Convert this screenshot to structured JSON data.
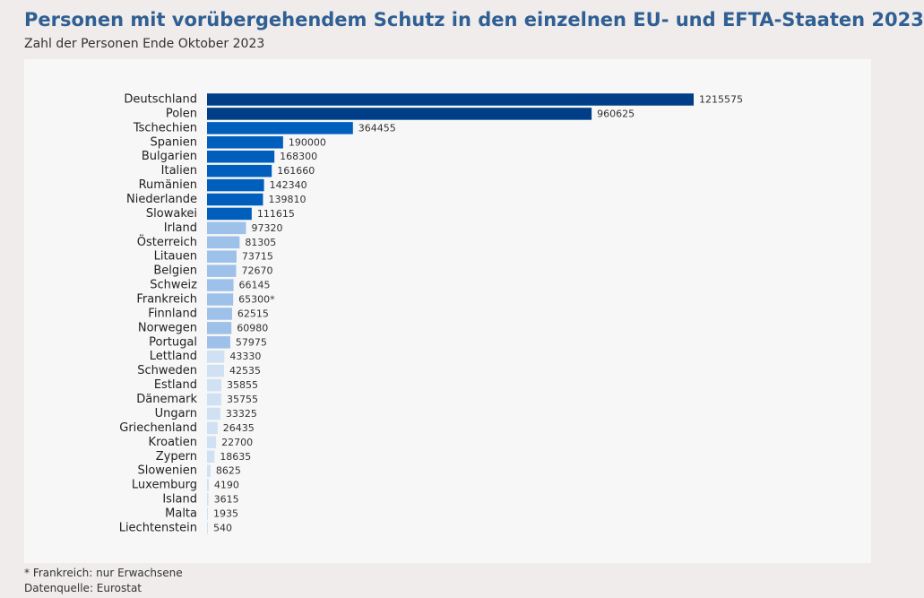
{
  "title": "Personen mit vorübergehendem Schutz in den einzelnen EU- und EFTA-Staaten 2023",
  "subtitle": "Zahl der Personen Ende Oktober 2023",
  "footnote": "* Frankreich: nur Erwachsene",
  "source": "Datenquelle: Eurostat",
  "colors": {
    "tier1": "#003f87",
    "tier2": "#005fbd",
    "tier3": "#9dc1e8",
    "tier4": "#cfe1f3"
  },
  "chart_data": {
    "type": "bar",
    "orientation": "horizontal",
    "title": "Personen mit vorübergehendem Schutz in den einzelnen EU- und EFTA-Staaten 2023",
    "subtitle": "Zahl der Personen Ende Oktober 2023",
    "xlim": [
      0,
      1215575
    ],
    "grid": false,
    "categories": [
      "Deutschland",
      "Polen",
      "Tschechien",
      "Spanien",
      "Bulgarien",
      "Italien",
      "Rumänien",
      "Niederlande",
      "Slowakei",
      "Irland",
      "Österreich",
      "Litauen",
      "Belgien",
      "Schweiz",
      "Frankreich",
      "Finnland",
      "Norwegen",
      "Portugal",
      "Lettland",
      "Schweden",
      "Estland",
      "Dänemark",
      "Ungarn",
      "Griechenland",
      "Kroatien",
      "Zypern",
      "Slowenien",
      "Luxemburg",
      "Island",
      "Malta",
      "Liechtenstein"
    ],
    "values": [
      1215575,
      960625,
      364455,
      190000,
      168300,
      161660,
      142340,
      139810,
      111615,
      97320,
      81305,
      73715,
      72670,
      66145,
      65300,
      62515,
      60980,
      57975,
      43330,
      42535,
      35855,
      35755,
      33325,
      26435,
      22700,
      18635,
      8625,
      4190,
      3615,
      1935,
      540
    ],
    "labels": [
      "1215575",
      "960625",
      "364455",
      "190000",
      "168300",
      "161660",
      "142340",
      "139810",
      "111615",
      "97320",
      "81305",
      "73715",
      "72670",
      "66145",
      "65300*",
      "62515",
      "60980",
      "57975",
      "43330",
      "42535",
      "35855",
      "35755",
      "33325",
      "26435",
      "22700",
      "18635",
      "8625",
      "4190",
      "3615",
      "1935",
      "540"
    ],
    "color_tiers": [
      "tier1",
      "tier1",
      "tier2",
      "tier2",
      "tier2",
      "tier2",
      "tier2",
      "tier2",
      "tier2",
      "tier3",
      "tier3",
      "tier3",
      "tier3",
      "tier3",
      "tier3",
      "tier3",
      "tier3",
      "tier3",
      "tier4",
      "tier4",
      "tier4",
      "tier4",
      "tier4",
      "tier4",
      "tier4",
      "tier4",
      "tier4",
      "tier4",
      "tier4",
      "tier4",
      "tier4"
    ]
  }
}
